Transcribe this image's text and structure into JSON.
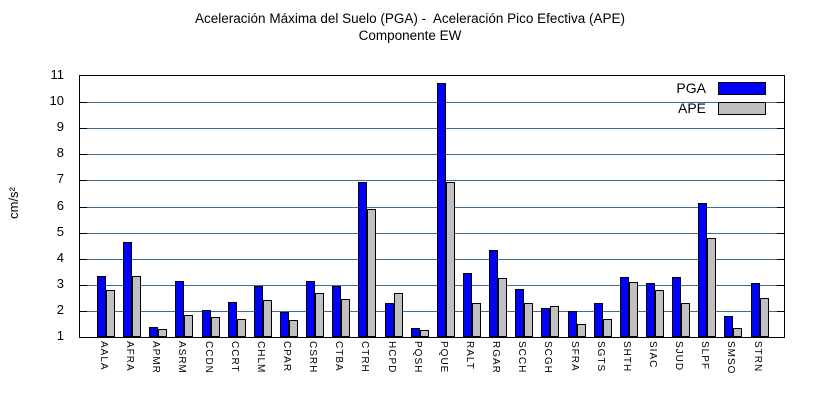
{
  "title": {
    "line1": "Aceleración Máxima del Suelo (PGA) -  Aceleración Pico Efectiva (APE)",
    "line2": "Componente EW"
  },
  "colors": {
    "pga_blue": "#0000ff",
    "ape_gray": "#c0c0c0",
    "gridline": "#3d6e8f",
    "frame": "#000000",
    "background": "#ffffff"
  },
  "chart_data": {
    "type": "bar",
    "title": "Aceleración Máxima del Suelo (PGA) -  Aceleración Pico Efectiva (APE) Componente EW",
    "xlabel": "",
    "ylabel": "cm/s²",
    "ylim": [
      1,
      11
    ],
    "yticks": [
      1,
      2,
      3,
      4,
      5,
      6,
      7,
      8,
      9,
      10,
      11
    ],
    "grid": true,
    "legend_position": "top-right-inside",
    "categories": [
      "AALA",
      "AFRA",
      "APMR",
      "ASRM",
      "CCDN",
      "CCRT",
      "CHLM",
      "CPAR",
      "CSRH",
      "CTBA",
      "CTRH",
      "HCPD",
      "PQSH",
      "PQUE",
      "RALT",
      "RGAR",
      "SCCH",
      "SCGH",
      "SFRA",
      "SGTS",
      "SHTH",
      "SIAC",
      "SJUD",
      "SLPF",
      "SMSO",
      "STRN"
    ],
    "series": [
      {
        "name": "PGA",
        "color": "#0000ff",
        "values": [
          3.35,
          4.65,
          1.4,
          3.15,
          2.05,
          2.35,
          2.95,
          1.95,
          3.15,
          2.95,
          6.95,
          2.3,
          1.35,
          10.75,
          3.45,
          4.35,
          2.85,
          2.1,
          2.0,
          2.3,
          3.3,
          3.05,
          3.3,
          6.15,
          1.8,
          3.05
        ]
      },
      {
        "name": "APE",
        "color": "#c0c0c0",
        "values": [
          2.8,
          3.35,
          1.3,
          1.85,
          1.75,
          1.7,
          2.4,
          1.65,
          2.7,
          2.45,
          5.9,
          2.7,
          1.25,
          6.95,
          2.3,
          3.25,
          2.3,
          2.2,
          1.5,
          1.7,
          3.1,
          2.8,
          2.3,
          4.8,
          1.35,
          2.5
        ]
      }
    ]
  }
}
